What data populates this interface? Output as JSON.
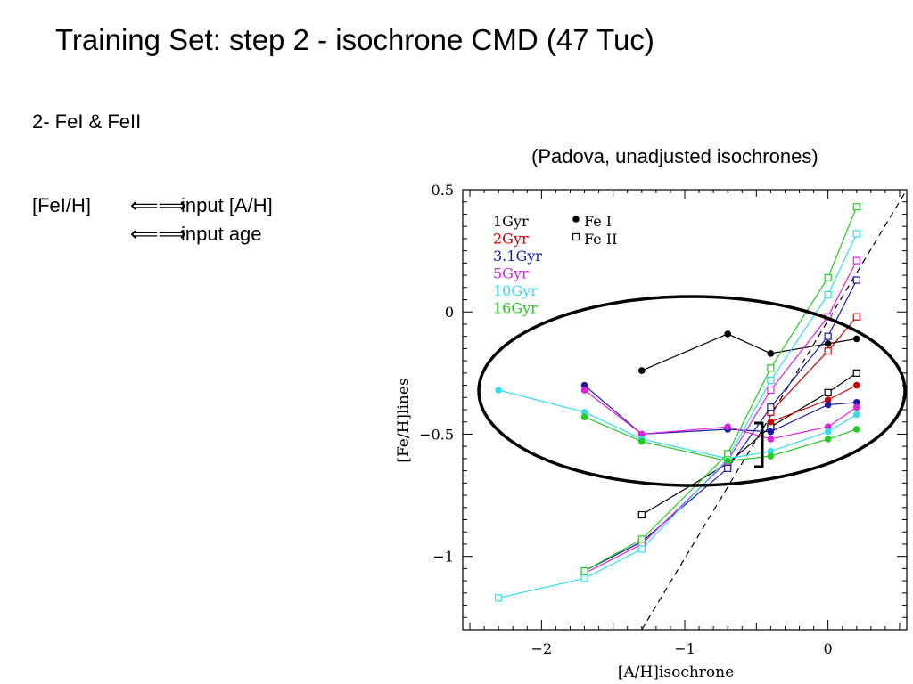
{
  "slide": {
    "title": "Training Set:  step 2 - isochrone CMD (47 Tuc)",
    "subtitle": "2- FeI  &  FeII",
    "note": "(Padova, unadjusted isochrones)",
    "relations": [
      {
        "lhs": "[FeI/H]",
        "arrow": "⟸⟹",
        "rhs": "input [A/H]"
      },
      {
        "lhs": "",
        "arrow": "⟸⟹",
        "rhs": "input age"
      }
    ]
  },
  "chart_data": {
    "type": "line",
    "xlabel": "[A/H]isochrone",
    "ylabel": "[Fe/H]lines",
    "xlim": [
      -2.55,
      0.55
    ],
    "ylim": [
      -1.3,
      0.5
    ],
    "xticks": [
      -2,
      -1,
      0
    ],
    "yticks": [
      0.5,
      0,
      -0.5,
      -1
    ],
    "xtick_labels": [
      "−2",
      "−1",
      "0"
    ],
    "ytick_labels": [
      "0.5",
      "0",
      "−0.5",
      "−1"
    ],
    "legend_position": "top-left",
    "marker_legend": [
      {
        "label": "Fe I",
        "marker": "filled-circle"
      },
      {
        "label": "Fe II",
        "marker": "open-square"
      }
    ],
    "reference_line": {
      "style": "dashed",
      "color": "#000000",
      "points": [
        [
          -1.3,
          -1.3
        ],
        [
          0.55,
          0.5
        ]
      ]
    },
    "series": [
      {
        "name": "1Gyr",
        "color": "#000000",
        "fe1": [
          [
            -1.3,
            -0.24
          ],
          [
            -0.7,
            -0.09
          ],
          [
            -0.4,
            -0.17
          ],
          [
            0.0,
            -0.13
          ],
          [
            0.2,
            -0.11
          ]
        ],
        "fe2": [
          [
            -1.3,
            -0.83
          ],
          [
            -0.7,
            -0.62
          ],
          [
            -0.4,
            -0.47
          ],
          [
            0.0,
            -0.33
          ],
          [
            0.2,
            -0.25
          ]
        ]
      },
      {
        "name": "2Gyr",
        "color": "#cc0000",
        "fe1": [
          [
            -0.4,
            -0.45
          ],
          [
            0.0,
            -0.36
          ],
          [
            0.2,
            -0.3
          ]
        ],
        "fe2": [
          [
            -0.4,
            -0.41
          ],
          [
            0.0,
            -0.16
          ],
          [
            0.2,
            -0.02
          ]
        ]
      },
      {
        "name": "3.1Gyr",
        "color": "#1a1aa6",
        "fe1": [
          [
            -1.7,
            -0.3
          ],
          [
            -1.3,
            -0.5
          ],
          [
            -0.7,
            -0.48
          ],
          [
            -0.4,
            -0.49
          ],
          [
            0.0,
            -0.38
          ],
          [
            0.2,
            -0.37
          ]
        ],
        "fe2": [
          [
            -1.7,
            -1.06
          ],
          [
            -1.3,
            -0.94
          ],
          [
            -0.7,
            -0.64
          ],
          [
            -0.4,
            -0.39
          ],
          [
            0.0,
            -0.1
          ],
          [
            0.2,
            0.13
          ]
        ]
      },
      {
        "name": "5Gyr",
        "color": "#e020e0",
        "fe1": [
          [
            -1.7,
            -0.32
          ],
          [
            -1.3,
            -0.5
          ],
          [
            -0.7,
            -0.47
          ],
          [
            -0.4,
            -0.52
          ],
          [
            0.0,
            -0.47
          ],
          [
            0.2,
            -0.39
          ]
        ],
        "fe2": [
          [
            -1.7,
            -1.07
          ],
          [
            -1.3,
            -0.95
          ],
          [
            -0.7,
            -0.61
          ],
          [
            -0.4,
            -0.32
          ],
          [
            0.0,
            -0.02
          ],
          [
            0.2,
            0.21
          ]
        ]
      },
      {
        "name": "10Gyr",
        "color": "#33ddee",
        "fe1": [
          [
            -2.3,
            -0.32
          ],
          [
            -1.7,
            -0.41
          ],
          [
            -1.3,
            -0.52
          ],
          [
            -0.7,
            -0.6
          ],
          [
            -0.4,
            -0.57
          ],
          [
            0.0,
            -0.49
          ],
          [
            0.2,
            -0.42
          ]
        ],
        "fe2": [
          [
            -2.3,
            -1.17
          ],
          [
            -1.7,
            -1.09
          ],
          [
            -1.3,
            -0.97
          ],
          [
            -0.7,
            -0.6
          ],
          [
            -0.4,
            -0.28
          ],
          [
            0.0,
            0.07
          ],
          [
            0.2,
            0.32
          ]
        ]
      },
      {
        "name": "16Gyr",
        "color": "#22cc22",
        "fe1": [
          [
            -1.7,
            -0.43
          ],
          [
            -1.3,
            -0.53
          ],
          [
            -0.7,
            -0.61
          ],
          [
            -0.4,
            -0.59
          ],
          [
            0.0,
            -0.52
          ],
          [
            0.2,
            -0.48
          ]
        ],
        "fe2": [
          [
            -1.7,
            -1.06
          ],
          [
            -1.3,
            -0.93
          ],
          [
            -0.7,
            -0.58
          ],
          [
            -0.4,
            -0.23
          ],
          [
            0.0,
            0.14
          ],
          [
            0.2,
            0.43
          ]
        ]
      }
    ]
  }
}
